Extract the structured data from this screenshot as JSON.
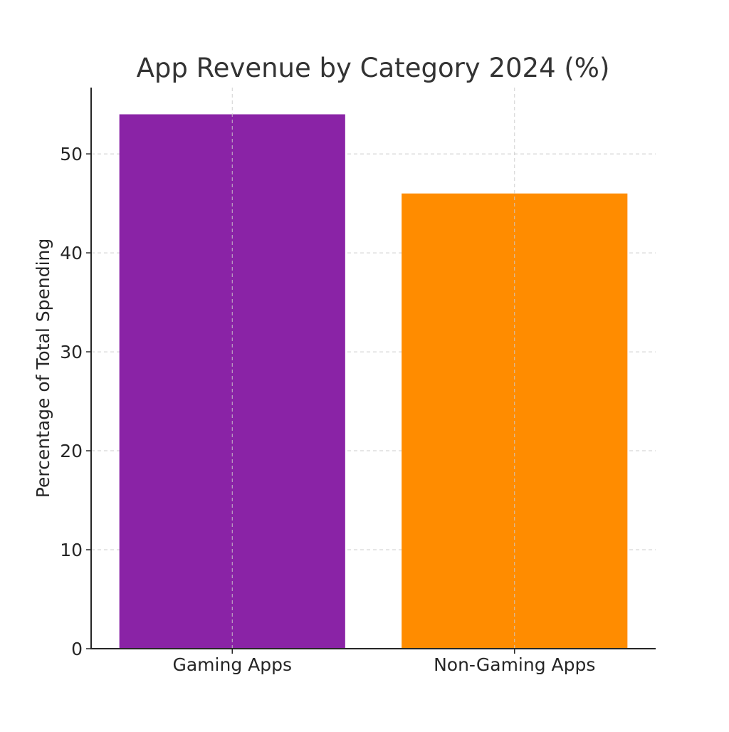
{
  "chart_data": {
    "type": "bar",
    "title": "App Revenue by Category 2024 (%)",
    "xlabel": "",
    "ylabel": "Percentage of Total Spending",
    "categories": [
      "Gaming Apps",
      "Non-Gaming Apps"
    ],
    "values": [
      54,
      46
    ],
    "ylim": [
      0,
      56.7
    ],
    "yticks": [
      0,
      10,
      20,
      30,
      40,
      50
    ],
    "grid": true,
    "colors": [
      "#8a23a6",
      "#ff8c00"
    ]
  }
}
